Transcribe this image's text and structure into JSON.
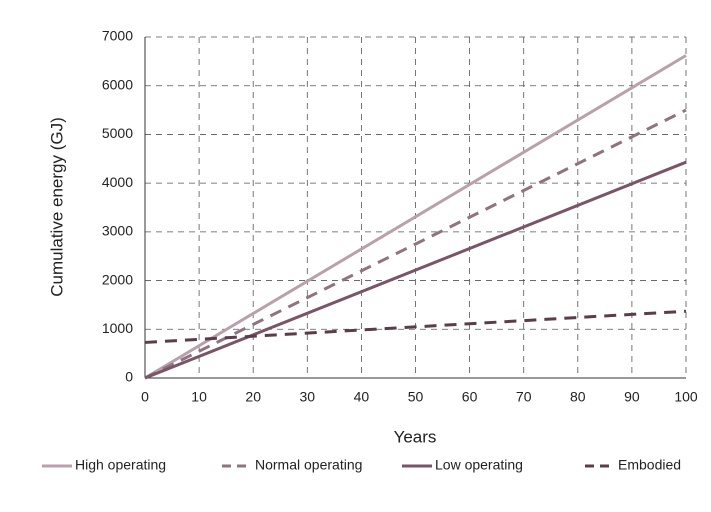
{
  "chart_data": {
    "type": "line",
    "x_label": "Years",
    "y_label": "Cumulative energy (GJ)",
    "x": [
      0,
      100
    ],
    "series": [
      {
        "name": "High operating",
        "color": "#b9a1ac",
        "dashed": false,
        "values": [
          0,
          6620
        ]
      },
      {
        "name": "Normal operating",
        "color": "#8f7381",
        "dashed": true,
        "values": [
          0,
          5500
        ]
      },
      {
        "name": "Low operating",
        "color": "#7a5567",
        "dashed": false,
        "values": [
          0,
          4430
        ]
      },
      {
        "name": "Embodied",
        "color": "#5a3c4b",
        "dashed": true,
        "values": [
          730,
          1370
        ]
      }
    ],
    "xlim": [
      0,
      100
    ],
    "xticks": [
      0,
      10,
      20,
      30,
      40,
      50,
      60,
      70,
      80,
      90,
      100
    ],
    "ylim": [
      0,
      7000
    ],
    "yticks": [
      0,
      1000,
      2000,
      3000,
      4000,
      5000,
      6000,
      7000
    ],
    "grid": true,
    "legend": "bottom"
  }
}
